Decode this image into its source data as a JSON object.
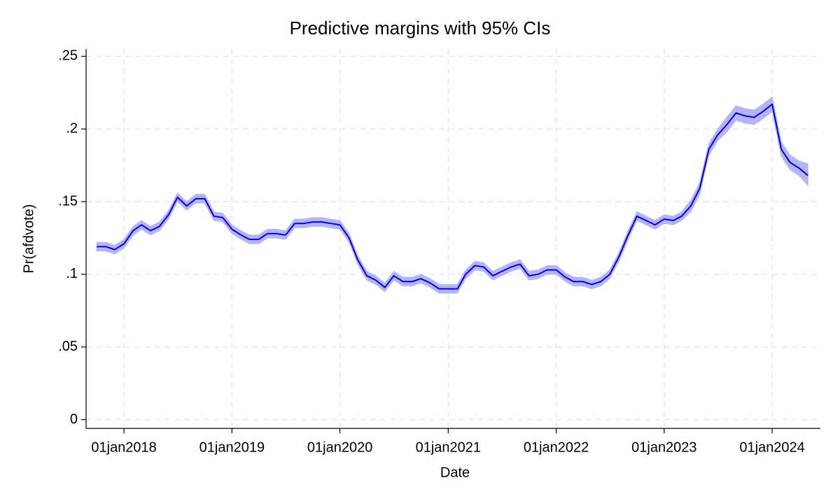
{
  "chart_data": {
    "type": "line",
    "title": "Predictive margins with 95% CIs",
    "x_label": "Date",
    "y_label": "Pr(afdvote)",
    "x": [
      "2017-10-01",
      "2017-11-01",
      "2017-12-01",
      "2018-01-01",
      "2018-02-01",
      "2018-03-01",
      "2018-04-01",
      "2018-05-01",
      "2018-06-01",
      "2018-07-01",
      "2018-08-01",
      "2018-09-01",
      "2018-10-01",
      "2018-11-01",
      "2018-12-01",
      "2019-01-01",
      "2019-02-01",
      "2019-03-01",
      "2019-04-01",
      "2019-05-01",
      "2019-06-01",
      "2019-07-01",
      "2019-08-01",
      "2019-09-01",
      "2019-10-01",
      "2019-11-01",
      "2019-12-01",
      "2020-01-01",
      "2020-02-01",
      "2020-03-01",
      "2020-04-01",
      "2020-05-01",
      "2020-06-01",
      "2020-07-01",
      "2020-08-01",
      "2020-09-01",
      "2020-10-01",
      "2020-11-01",
      "2020-12-01",
      "2021-01-01",
      "2021-02-01",
      "2021-03-01",
      "2021-04-01",
      "2021-05-01",
      "2021-06-01",
      "2021-07-01",
      "2021-08-01",
      "2021-09-01",
      "2021-10-01",
      "2021-11-01",
      "2021-12-01",
      "2022-01-01",
      "2022-02-01",
      "2022-03-01",
      "2022-04-01",
      "2022-05-01",
      "2022-06-01",
      "2022-07-01",
      "2022-08-01",
      "2022-09-01",
      "2022-10-01",
      "2022-11-01",
      "2022-12-01",
      "2023-01-01",
      "2023-02-01",
      "2023-03-01",
      "2023-04-01",
      "2023-05-01",
      "2023-06-01",
      "2023-07-01",
      "2023-08-01",
      "2023-09-01",
      "2023-10-01",
      "2023-11-01",
      "2023-12-01",
      "2024-01-01",
      "2024-02-01",
      "2024-03-01",
      "2024-04-01",
      "2024-05-01"
    ],
    "series": [
      {
        "color": "#0000e6",
        "band_color": "#b4b4fa",
        "values": [
          0.119,
          0.119,
          0.117,
          0.121,
          0.13,
          0.134,
          0.13,
          0.133,
          0.141,
          0.153,
          0.147,
          0.152,
          0.152,
          0.14,
          0.139,
          0.131,
          0.127,
          0.124,
          0.124,
          0.128,
          0.128,
          0.127,
          0.135,
          0.135,
          0.136,
          0.136,
          0.135,
          0.134,
          0.125,
          0.11,
          0.099,
          0.096,
          0.091,
          0.099,
          0.095,
          0.095,
          0.097,
          0.094,
          0.09,
          0.09,
          0.09,
          0.1,
          0.106,
          0.105,
          0.099,
          0.102,
          0.105,
          0.107,
          0.099,
          0.1,
          0.103,
          0.103,
          0.098,
          0.095,
          0.095,
          0.093,
          0.095,
          0.1,
          0.112,
          0.127,
          0.14,
          0.137,
          0.134,
          0.138,
          0.137,
          0.14,
          0.147,
          0.159,
          0.186,
          0.196,
          0.203,
          0.211,
          0.209,
          0.208,
          0.212,
          0.217,
          0.186,
          0.177,
          0.173,
          0.168
        ],
        "lower": [
          0.116,
          0.116,
          0.114,
          0.118,
          0.127,
          0.131,
          0.127,
          0.13,
          0.138,
          0.15,
          0.144,
          0.149,
          0.149,
          0.137,
          0.136,
          0.128,
          0.124,
          0.121,
          0.121,
          0.125,
          0.125,
          0.124,
          0.132,
          0.132,
          0.133,
          0.133,
          0.132,
          0.131,
          0.122,
          0.107,
          0.096,
          0.093,
          0.088,
          0.096,
          0.092,
          0.092,
          0.094,
          0.091,
          0.087,
          0.087,
          0.087,
          0.097,
          0.103,
          0.102,
          0.096,
          0.099,
          0.102,
          0.104,
          0.096,
          0.097,
          0.1,
          0.1,
          0.095,
          0.092,
          0.092,
          0.09,
          0.092,
          0.097,
          0.109,
          0.124,
          0.137,
          0.134,
          0.131,
          0.135,
          0.134,
          0.137,
          0.143,
          0.155,
          0.182,
          0.192,
          0.198,
          0.206,
          0.204,
          0.203,
          0.207,
          0.212,
          0.181,
          0.172,
          0.168,
          0.161
        ],
        "upper": [
          0.122,
          0.122,
          0.12,
          0.124,
          0.133,
          0.137,
          0.133,
          0.136,
          0.144,
          0.156,
          0.15,
          0.155,
          0.155,
          0.143,
          0.142,
          0.134,
          0.13,
          0.127,
          0.127,
          0.131,
          0.131,
          0.13,
          0.138,
          0.138,
          0.139,
          0.139,
          0.138,
          0.137,
          0.128,
          0.113,
          0.102,
          0.099,
          0.094,
          0.102,
          0.098,
          0.098,
          0.1,
          0.097,
          0.093,
          0.093,
          0.093,
          0.103,
          0.109,
          0.108,
          0.102,
          0.105,
          0.108,
          0.11,
          0.102,
          0.103,
          0.106,
          0.106,
          0.101,
          0.098,
          0.098,
          0.096,
          0.098,
          0.103,
          0.115,
          0.13,
          0.143,
          0.14,
          0.137,
          0.141,
          0.14,
          0.143,
          0.151,
          0.163,
          0.19,
          0.2,
          0.208,
          0.216,
          0.214,
          0.213,
          0.217,
          0.222,
          0.191,
          0.182,
          0.178,
          0.176
        ]
      }
    ],
    "xlim": [
      "2017-08-26",
      "2024-06-12"
    ],
    "xticks": [
      {
        "value": "2018-01-01",
        "label": "01jan2018"
      },
      {
        "value": "2019-01-01",
        "label": "01jan2019"
      },
      {
        "value": "2020-01-01",
        "label": "01jan2020"
      },
      {
        "value": "2021-01-01",
        "label": "01jan2021"
      },
      {
        "value": "2022-01-01",
        "label": "01jan2022"
      },
      {
        "value": "2023-01-01",
        "label": "01jan2023"
      },
      {
        "value": "2024-01-01",
        "label": "01jan2024"
      }
    ],
    "ylim": [
      -0.006,
      0.255
    ],
    "yticks": [
      0,
      {
        "value": 0.05,
        "label": ".05"
      },
      {
        "value": 0.1,
        "label": ".1"
      },
      {
        "value": 0.15,
        "label": ".15"
      },
      {
        "value": 0.2,
        "label": ".2"
      },
      {
        "value": 0.25,
        "label": ".25"
      }
    ],
    "grid": true
  }
}
